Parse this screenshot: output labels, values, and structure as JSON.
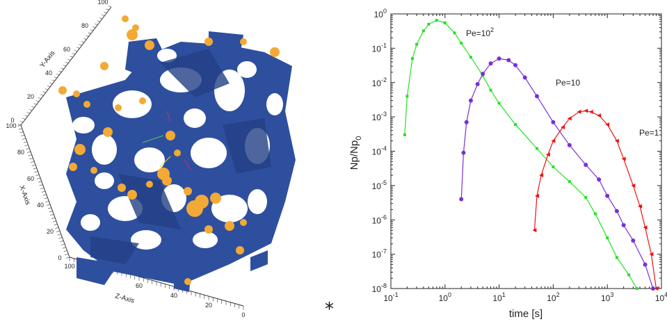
{
  "left_figure": {
    "axis_labels": {
      "y": "Y-Axis",
      "x": "X-Axis",
      "z": "Z-Axis"
    },
    "y_ticks": [
      "0",
      "20",
      "40",
      "60",
      "80",
      "100"
    ],
    "x_ticks": [
      "0",
      "20",
      "40",
      "60",
      "80",
      "100"
    ],
    "z_ticks": [
      "0",
      "20",
      "40",
      "60",
      "80",
      "100"
    ],
    "colors": {
      "solid": "#2e4f9e",
      "particles": "#f3a935"
    }
  },
  "marker": "*",
  "chart_data": {
    "type": "line",
    "xlabel": "time [s]",
    "ylabel": "Np/Np",
    "ylabel_sub": "0",
    "x_scale": "log",
    "y_scale": "log",
    "xlim": [
      0.1,
      10000
    ],
    "ylim": [
      1e-08,
      1
    ],
    "x_ticks": [
      {
        "base": "10",
        "exp": "-1"
      },
      {
        "base": "10",
        "exp": "0"
      },
      {
        "base": "10",
        "exp": "1"
      },
      {
        "base": "10",
        "exp": "2"
      },
      {
        "base": "10",
        "exp": "3"
      },
      {
        "base": "10",
        "exp": "4"
      }
    ],
    "y_ticks": [
      {
        "base": "10",
        "exp": "0"
      },
      {
        "base": "10",
        "exp": "-1"
      },
      {
        "base": "10",
        "exp": "-2"
      },
      {
        "base": "10",
        "exp": "-3"
      },
      {
        "base": "10",
        "exp": "-4"
      },
      {
        "base": "10",
        "exp": "-5"
      },
      {
        "base": "10",
        "exp": "-6"
      },
      {
        "base": "10",
        "exp": "-7"
      },
      {
        "base": "10",
        "exp": "-8"
      }
    ],
    "series": [
      {
        "label_base": "Pe=10",
        "label_sup": "2",
        "color": "#22e322",
        "marker": "square",
        "points": [
          [
            0.18,
            0.0003
          ],
          [
            0.2,
            0.004
          ],
          [
            0.25,
            0.05
          ],
          [
            0.3,
            0.13
          ],
          [
            0.4,
            0.32
          ],
          [
            0.5,
            0.5
          ],
          [
            0.7,
            0.65
          ],
          [
            1.0,
            0.55
          ],
          [
            1.5,
            0.28
          ],
          [
            2.0,
            0.14
          ],
          [
            3.0,
            0.055
          ],
          [
            5.0,
            0.016
          ],
          [
            7.0,
            0.006
          ],
          [
            10,
            0.0025
          ],
          [
            20,
            0.0006
          ],
          [
            50,
            0.00012
          ],
          [
            100,
            3.5e-05
          ],
          [
            200,
            1.3e-05
          ],
          [
            400,
            4.5e-06
          ],
          [
            600,
            1.5e-06
          ],
          [
            1000,
            3e-07
          ],
          [
            1500,
            8e-08
          ],
          [
            2500,
            2.5e-08
          ],
          [
            3500,
            1e-08
          ]
        ]
      },
      {
        "label_base": "Pe=10",
        "label_sup": "",
        "color": "#7a2fd6",
        "marker": "circle",
        "points": [
          [
            2.0,
            4e-06
          ],
          [
            2.2,
            9e-05
          ],
          [
            2.5,
            0.0007
          ],
          [
            3.0,
            0.003
          ],
          [
            4.0,
            0.009
          ],
          [
            5.0,
            0.018
          ],
          [
            7.0,
            0.036
          ],
          [
            10,
            0.05
          ],
          [
            15,
            0.045
          ],
          [
            20,
            0.032
          ],
          [
            30,
            0.014
          ],
          [
            50,
            0.004
          ],
          [
            100,
            0.0007
          ],
          [
            200,
            0.00015
          ],
          [
            400,
            4e-05
          ],
          [
            700,
            1.5e-05
          ],
          [
            1000,
            5e-06
          ],
          [
            1500,
            1.8e-06
          ],
          [
            2000,
            7e-07
          ],
          [
            3000,
            2.5e-07
          ],
          [
            5000,
            5e-08
          ],
          [
            7000,
            1e-08
          ]
        ]
      },
      {
        "label_base": "Pe=1",
        "label_sup": "",
        "color": "#ee1111",
        "marker": "triangle",
        "points": [
          [
            45,
            5e-07
          ],
          [
            50,
            5e-06
          ],
          [
            60,
            2e-05
          ],
          [
            80,
            8e-05
          ],
          [
            100,
            0.0002
          ],
          [
            150,
            0.0005
          ],
          [
            200,
            0.0009
          ],
          [
            300,
            0.0014
          ],
          [
            400,
            0.0015
          ],
          [
            500,
            0.0014
          ],
          [
            700,
            0.0011
          ],
          [
            1000,
            0.0006
          ],
          [
            1500,
            0.0002
          ],
          [
            2000,
            6e-05
          ],
          [
            3000,
            1e-05
          ],
          [
            4000,
            2.5e-06
          ],
          [
            5000,
            6e-07
          ],
          [
            6500,
            1e-07
          ],
          [
            8000,
            1e-08
          ]
        ]
      }
    ]
  }
}
